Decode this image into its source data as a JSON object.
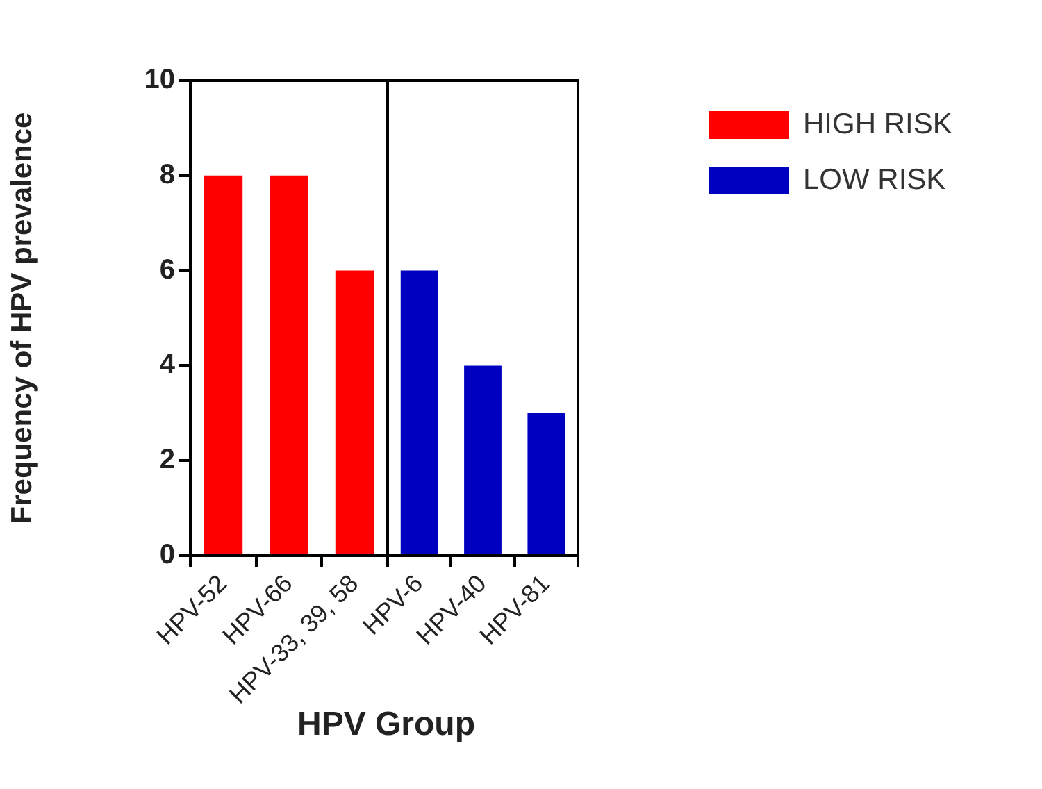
{
  "chart_data": [
    {
      "type": "bar",
      "ylabel": "Frequency of HPV prevalence",
      "xlabel": "HPV Group",
      "categories": [
        "HPV-52",
        "HPV-66",
        "HPV-33, 39, 58"
      ],
      "ylim": [
        0,
        10
      ],
      "yticks": [
        0,
        2,
        4,
        6,
        8,
        10
      ],
      "legend": "right",
      "series": [
        {
          "name": "HIGH RISK",
          "color": "#ff0000",
          "values": [
            8,
            8,
            6
          ]
        }
      ]
    },
    {
      "type": "bar",
      "categories": [
        "HPV-6",
        "HPV-40",
        "HPV-81"
      ],
      "ylim": [
        0,
        10
      ],
      "tick_labels": "x",
      "legend": "right",
      "series": [
        {
          "name": "LOW RISK",
          "color": "#0000c0",
          "values": [
            6,
            4,
            3
          ]
        }
      ]
    }
  ]
}
